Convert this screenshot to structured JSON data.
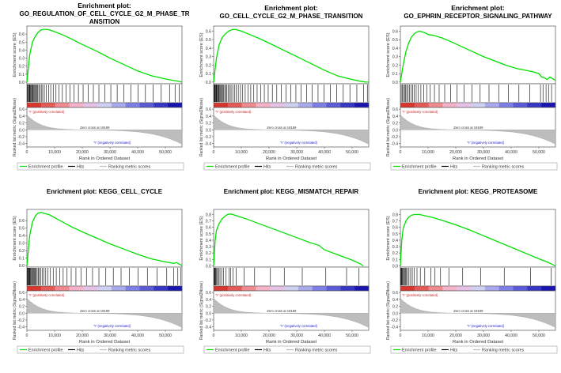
{
  "common": {
    "ylabel_es": "Enrichment score (ES)",
    "ylabel_rank": "Ranked list metric (Signal2Noise)",
    "xlabel": "Rank in Ordered Dataset",
    "pos_label": "'Y' (positively correlated)",
    "neg_label": "'Y' (negatively correlated)",
    "zero_cross": "Zero cross at 19199",
    "legend": [
      "Enrichment profile",
      "Hits",
      "Ranking metric scores"
    ],
    "colors": {
      "es": "#00e000",
      "hits": "#000000",
      "metric": "#bdbdbd"
    },
    "heatmap_colors": [
      "#d9362e",
      "#e55a57",
      "#ef8a8e",
      "#f6b2c9",
      "#e6c3e6",
      "#cfd0f2",
      "#a9a9ee",
      "#7e7ee8",
      "#5b5bd8",
      "#3737c6",
      "#1a14b0"
    ],
    "x_ticks": [
      "0",
      "10,000",
      "20,000",
      "30,000",
      "40,000",
      "50,000"
    ],
    "x_tick_values": [
      0,
      10000,
      20000,
      30000,
      40000,
      50000
    ],
    "x_max": 56000,
    "metric_ticks": [
      "0.6",
      "0.4",
      "0.2",
      "0.0",
      "-0.2",
      "-0.4"
    ],
    "metric_tick_values": [
      0.6,
      0.4,
      0.2,
      0.0,
      -0.2,
      -0.4
    ],
    "metric_range": [
      -0.5,
      0.65
    ],
    "zero_cross_rank": 19199
  },
  "chart_data": [
    {
      "type": "line",
      "title": [
        "Enrichment plot:",
        "GO_REGULATION_OF_CELL_CYCLE_G2_M_PHASE_TR",
        "ANSITION"
      ],
      "es_ticks": [
        "0.6",
        "0.5",
        "0.4",
        "0.3",
        "0.2",
        "0.1",
        "0.0"
      ],
      "es_tick_values": [
        0.6,
        0.5,
        0.4,
        0.3,
        0.2,
        0.1,
        0.0
      ],
      "ylim": [
        -0.02,
        0.7
      ],
      "x": [
        0,
        1000,
        2000,
        3000,
        4000,
        5000,
        6000,
        7000,
        8000,
        10000,
        13000,
        16000,
        20000,
        25000,
        30000,
        35000,
        40000,
        45000,
        50000,
        53000,
        55000,
        56000
      ],
      "es": [
        0,
        0.34,
        0.5,
        0.57,
        0.62,
        0.65,
        0.66,
        0.66,
        0.655,
        0.63,
        0.59,
        0.54,
        0.47,
        0.39,
        0.3,
        0.22,
        0.14,
        0.08,
        0.04,
        0.02,
        0.01,
        0.0
      ],
      "hits": [
        200,
        400,
        700,
        900,
        1100,
        1300,
        1600,
        1800,
        2100,
        2300,
        2600,
        2900,
        3200,
        3500,
        3900,
        4300,
        4700,
        5200,
        5700,
        6300,
        7000,
        7800,
        8600,
        9500,
        10500,
        11600,
        12800,
        14100,
        15500,
        17000,
        18600,
        20300,
        22100,
        24000,
        26000,
        28100,
        30300,
        32600,
        35000,
        37500,
        40100,
        42800,
        45600,
        48500,
        51500,
        53500,
        55000
      ]
    },
    {
      "type": "line",
      "title": [
        "Enrichment plot:",
        "GO_CELL_CYCLE_G2_M_PHASE_TRANSITION"
      ],
      "es_ticks": [
        "0.6",
        "0.5",
        "0.4",
        "0.3",
        "0.2",
        "0.1",
        "0.0"
      ],
      "es_tick_values": [
        0.6,
        0.5,
        0.4,
        0.3,
        0.2,
        0.1,
        0.0
      ],
      "ylim": [
        -0.02,
        0.66
      ],
      "x": [
        0,
        1000,
        2000,
        3000,
        4000,
        5000,
        6000,
        7000,
        8000,
        10000,
        13000,
        16000,
        20000,
        25000,
        30000,
        35000,
        40000,
        45000,
        50000,
        53000,
        55000,
        56000
      ],
      "es": [
        0,
        0.28,
        0.44,
        0.52,
        0.56,
        0.59,
        0.61,
        0.62,
        0.62,
        0.6,
        0.56,
        0.52,
        0.46,
        0.38,
        0.3,
        0.22,
        0.14,
        0.07,
        0.03,
        0.01,
        0.0,
        0.0
      ],
      "hits": [
        100,
        300,
        500,
        700,
        900,
        1100,
        1300,
        1500,
        1800,
        2000,
        2300,
        2600,
        2900,
        3200,
        3600,
        4000,
        4400,
        4800,
        5300,
        5800,
        6300,
        6900,
        7500,
        8200,
        8900,
        9700,
        10500,
        11400,
        12400,
        13400,
        14500,
        15700,
        17000,
        18300,
        19700,
        21200,
        22800,
        24400,
        26100,
        27900,
        29700,
        31600,
        33600,
        35600,
        37700,
        39900,
        42100,
        44400,
        46800,
        49200,
        51700,
        54200,
        55500
      ]
    },
    {
      "type": "line",
      "title": [
        "Enrichment plot:",
        "GO_EPHRIN_RECEPTOR_SIGNALING_PATHWAY"
      ],
      "es_ticks": [
        "0.6",
        "0.5",
        "0.4",
        "0.3",
        "0.2",
        "0.1",
        "0.0"
      ],
      "es_tick_values": [
        0.6,
        0.5,
        0.4,
        0.3,
        0.2,
        0.1,
        0.0
      ],
      "ylim": [
        -0.02,
        0.66
      ],
      "x": [
        0,
        1000,
        2000,
        3000,
        4000,
        5000,
        6000,
        7000,
        8000,
        9000,
        10000,
        12000,
        15000,
        18000,
        22000,
        26000,
        30000,
        34000,
        38000,
        42000,
        45000,
        48000,
        50000,
        51000,
        52000,
        53000,
        54000,
        55000,
        56000
      ],
      "es": [
        0,
        0.2,
        0.36,
        0.46,
        0.53,
        0.57,
        0.59,
        0.6,
        0.59,
        0.58,
        0.56,
        0.55,
        0.52,
        0.48,
        0.42,
        0.36,
        0.3,
        0.25,
        0.2,
        0.16,
        0.14,
        0.12,
        0.1,
        0.06,
        0.05,
        0.03,
        0.06,
        0.04,
        0.02
      ],
      "hits": [
        300,
        700,
        1100,
        1500,
        1900,
        2300,
        2800,
        3300,
        3800,
        4400,
        5000,
        5700,
        6500,
        7400,
        8400,
        9500,
        10800,
        12300,
        14000,
        16000,
        18200,
        20500,
        23000,
        25800,
        28800,
        32000,
        35500,
        39000,
        42800,
        46700,
        50600,
        51500,
        52600,
        53500,
        54600
      ]
    },
    {
      "type": "line",
      "title": [
        "Enrichment plot: KEGG_CELL_CYCLE"
      ],
      "es_ticks": [
        "0.6",
        "0.5",
        "0.4",
        "0.3",
        "0.2",
        "0.1",
        "0.0"
      ],
      "es_tick_values": [
        0.6,
        0.5,
        0.4,
        0.3,
        0.2,
        0.1,
        0.0
      ],
      "ylim": [
        -0.02,
        0.75
      ],
      "x": [
        0,
        1000,
        2000,
        3000,
        4000,
        5000,
        6000,
        8000,
        10000,
        13000,
        16000,
        20000,
        25000,
        30000,
        35000,
        40000,
        45000,
        50000,
        53000,
        54000,
        55000,
        56000
      ],
      "es": [
        0,
        0.4,
        0.58,
        0.66,
        0.7,
        0.71,
        0.7,
        0.68,
        0.64,
        0.58,
        0.52,
        0.45,
        0.37,
        0.29,
        0.22,
        0.15,
        0.09,
        0.05,
        0.03,
        0.04,
        0.02,
        0.0
      ],
      "hits": [
        100,
        300,
        500,
        700,
        900,
        1100,
        1300,
        1500,
        1800,
        2100,
        2400,
        2700,
        3000,
        3300,
        3700,
        4100,
        4500,
        5000,
        5500,
        6100,
        6800,
        7600,
        8500,
        9500,
        10600,
        11800,
        13100,
        14500,
        16000,
        17700,
        19500,
        21500,
        23700,
        26000,
        28500,
        31200,
        34000,
        37000,
        40200,
        43500,
        47000,
        50500,
        53000,
        54500,
        55500
      ]
    },
    {
      "type": "line",
      "title": [
        "Enrichment plot: KEGG_MISMATCH_REPAIR"
      ],
      "es_ticks": [
        "0.8",
        "0.7",
        "0.6",
        "0.5",
        "0.4",
        "0.3",
        "0.2",
        "0.1",
        "0.0"
      ],
      "es_tick_values": [
        0.8,
        0.7,
        0.6,
        0.5,
        0.4,
        0.3,
        0.2,
        0.1,
        0.0
      ],
      "ylim": [
        -0.02,
        0.88
      ],
      "x": [
        0,
        500,
        1000,
        2000,
        3000,
        4000,
        5000,
        6000,
        7000,
        9000,
        12000,
        15000,
        20000,
        25000,
        30000,
        35000,
        38000,
        40000,
        45000,
        50000,
        53000,
        54000
      ],
      "es": [
        0,
        0.38,
        0.55,
        0.66,
        0.73,
        0.77,
        0.8,
        0.81,
        0.8,
        0.77,
        0.73,
        0.68,
        0.6,
        0.52,
        0.44,
        0.36,
        0.32,
        0.25,
        0.17,
        0.09,
        0.03,
        0.0
      ],
      "hits": [
        150,
        350,
        550,
        800,
        1100,
        1400,
        1800,
        2300,
        2900,
        3600,
        4500,
        5600,
        6200,
        7000,
        8200,
        11000,
        14800,
        20500,
        25500,
        32000,
        40500,
        48000,
        52500
      ]
    },
    {
      "type": "line",
      "title": [
        "Enrichment plot: KEGG_PROTEASOME"
      ],
      "es_ticks": [
        "0.8",
        "0.7",
        "0.6",
        "0.5",
        "0.4",
        "0.3",
        "0.2",
        "0.1",
        "0.0"
      ],
      "es_tick_values": [
        0.8,
        0.7,
        0.6,
        0.5,
        0.4,
        0.3,
        0.2,
        0.1,
        0.0
      ],
      "ylim": [
        -0.02,
        0.88
      ],
      "x": [
        0,
        500,
        1000,
        2000,
        3000,
        4000,
        5000,
        6000,
        7000,
        9000,
        12000,
        15000,
        20000,
        25000,
        30000,
        35000,
        40000,
        45000,
        50000,
        53000,
        55000,
        56000
      ],
      "es": [
        0,
        0.4,
        0.58,
        0.7,
        0.76,
        0.79,
        0.8,
        0.8,
        0.8,
        0.78,
        0.75,
        0.71,
        0.64,
        0.56,
        0.47,
        0.38,
        0.29,
        0.2,
        0.11,
        0.06,
        0.02,
        0.0
      ],
      "hits": [
        100,
        300,
        500,
        700,
        900,
        1200,
        1500,
        1800,
        2200,
        2600,
        3100,
        3700,
        4300,
        5000,
        6000,
        7200,
        8800,
        11000,
        12500,
        14500,
        17500,
        22500,
        29000,
        37500,
        47000,
        54500
      ]
    }
  ]
}
